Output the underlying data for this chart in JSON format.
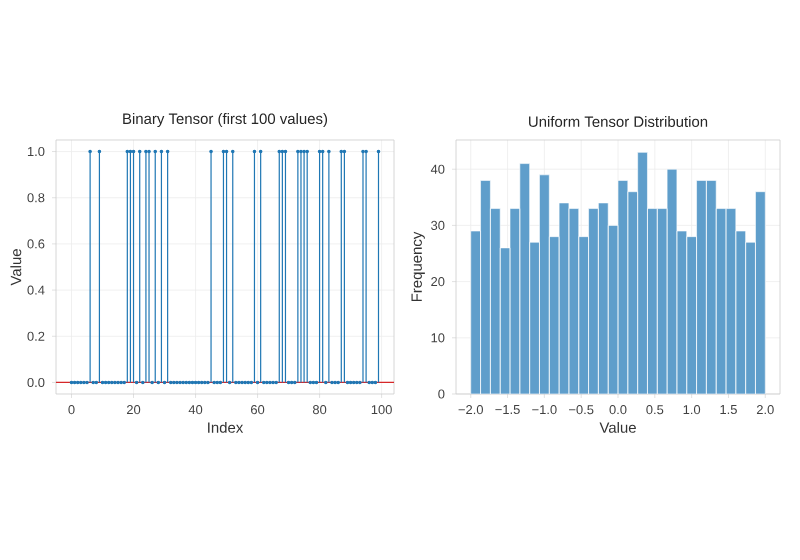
{
  "chart_data": [
    {
      "type": "lollipop",
      "title": "Binary Tensor (first 100 values)",
      "xlabel": "Index",
      "ylabel": "Value",
      "x": [
        0,
        1,
        2,
        3,
        4,
        5,
        6,
        7,
        8,
        9,
        10,
        11,
        12,
        13,
        14,
        15,
        16,
        17,
        18,
        19,
        20,
        21,
        22,
        23,
        24,
        25,
        26,
        27,
        28,
        29,
        30,
        31,
        32,
        33,
        34,
        35,
        36,
        37,
        38,
        39,
        40,
        41,
        42,
        43,
        44,
        45,
        46,
        47,
        48,
        49,
        50,
        51,
        52,
        53,
        54,
        55,
        56,
        57,
        58,
        59,
        60,
        61,
        62,
        63,
        64,
        65,
        66,
        67,
        68,
        69,
        70,
        71,
        72,
        73,
        74,
        75,
        76,
        77,
        78,
        79,
        80,
        81,
        82,
        83,
        84,
        85,
        86,
        87,
        88,
        89,
        90,
        91,
        92,
        93,
        94,
        95,
        96,
        97,
        98,
        99
      ],
      "values": [
        0,
        0,
        0,
        0,
        0,
        0,
        1,
        0,
        0,
        1,
        0,
        0,
        0,
        0,
        0,
        0,
        0,
        0,
        1,
        1,
        1,
        0,
        1,
        0,
        1,
        1,
        0,
        1,
        0,
        1,
        0,
        1,
        0,
        0,
        0,
        0,
        0,
        0,
        0,
        0,
        0,
        0,
        0,
        0,
        0,
        1,
        0,
        0,
        0,
        1,
        1,
        0,
        1,
        0,
        0,
        0,
        0,
        0,
        0,
        1,
        0,
        1,
        0,
        0,
        0,
        0,
        0,
        1,
        1,
        1,
        0,
        0,
        0,
        1,
        1,
        1,
        1,
        0,
        0,
        0,
        1,
        1,
        0,
        1,
        0,
        0,
        0,
        1,
        1,
        0,
        0,
        0,
        0,
        0,
        1,
        1,
        0,
        0,
        0,
        1
      ],
      "color": "#1f77b4",
      "marker": "circle",
      "xlim": [
        -5,
        104
      ],
      "ylim": [
        -0.05,
        1.05
      ],
      "xticks": [
        0,
        20,
        40,
        60,
        80,
        100
      ],
      "yticks": [
        {
          "value": 0,
          "label": "0.0"
        },
        {
          "value": 0.2,
          "label": "0.2"
        },
        {
          "value": 0.4,
          "label": "0.4"
        },
        {
          "value": 0.6,
          "label": "0.6"
        },
        {
          "value": 0.8,
          "label": "0.8"
        },
        {
          "value": 1,
          "label": "1.0"
        }
      ],
      "ref_lines": [
        {
          "axis": "y",
          "value": 0,
          "color": "#d62728"
        }
      ],
      "grid": true
    },
    {
      "type": "histogram",
      "title": "Uniform Tensor Distribution",
      "xlabel": "Value",
      "ylabel": "Frequency",
      "bins": [
        -2.0,
        -1.8667,
        -1.7333,
        -1.6,
        -1.4667,
        -1.3333,
        -1.2,
        -1.0667,
        -0.9333,
        -0.8,
        -0.6667,
        -0.5333,
        -0.4,
        -0.2667,
        -0.1333,
        0.0,
        0.1333,
        0.2667,
        0.4,
        0.5333,
        0.6667,
        0.8,
        0.9333,
        1.0667,
        1.2,
        1.3333,
        1.4667,
        1.6,
        1.7333,
        1.8667,
        2.0
      ],
      "values": [
        29,
        38,
        33,
        26,
        33,
        41,
        27,
        39,
        28,
        34,
        33,
        28,
        33,
        34,
        30,
        38,
        36,
        43,
        33,
        33,
        40,
        29,
        28,
        38,
        38,
        33,
        33,
        29,
        27,
        36
      ],
      "color": "#5f9ecb",
      "xlim": [
        -2.2,
        2.2
      ],
      "ylim": [
        0,
        45.2
      ],
      "xticks": [
        {
          "value": -2,
          "label": "−2.0"
        },
        {
          "value": -1.5,
          "label": "−1.5"
        },
        {
          "value": -1,
          "label": "−1.0"
        },
        {
          "value": -0.5,
          "label": "−0.5"
        },
        {
          "value": 0,
          "label": "0.0"
        },
        {
          "value": 0.5,
          "label": "0.5"
        },
        {
          "value": 1,
          "label": "1.0"
        },
        {
          "value": 1.5,
          "label": "1.5"
        },
        {
          "value": 2,
          "label": "2.0"
        }
      ],
      "yticks": [
        0,
        10,
        20,
        30,
        40
      ],
      "grid": true
    }
  ]
}
